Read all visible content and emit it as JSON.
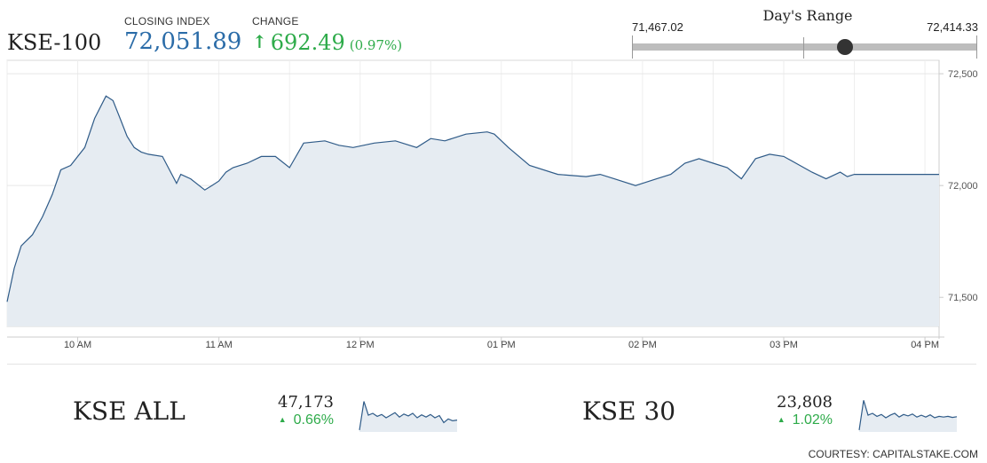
{
  "header": {
    "index_name": "KSE-100",
    "closing_label": "CLOSING INDEX",
    "closing_value": "72,051.89",
    "change_label": "CHANGE",
    "change_arrow": "↑",
    "change_value": "692.49",
    "change_percent": "(0.97%)"
  },
  "days_range": {
    "title": "Day's Range",
    "low": "71,467.02",
    "high": "72,414.33",
    "low_value": 71467.02,
    "high_value": 72414.33,
    "current_value": 72051.89
  },
  "colors": {
    "line": "#2f5b88",
    "fill": "#e6ecf2",
    "positive": "#2eab4a",
    "value_blue": "#2b6ca8"
  },
  "chart_data": {
    "type": "area",
    "ylim": [
      71370,
      72560
    ],
    "yticks": [
      72500,
      72000,
      71500
    ],
    "ytick_labels": [
      "72,500",
      "72,000",
      "71,500"
    ],
    "xlim": [
      9.5,
      16.1
    ],
    "xticks": [
      10,
      11,
      12,
      13,
      14,
      15,
      16
    ],
    "xtick_labels": [
      "10 AM",
      "11 AM",
      "12 PM",
      "01 PM",
      "02 PM",
      "03 PM",
      "04 PM"
    ],
    "grid": true,
    "series": [
      {
        "x": [
          9.5,
          9.55,
          9.6,
          9.68,
          9.75,
          9.82,
          9.88,
          9.95,
          10.05,
          10.12,
          10.2,
          10.25,
          10.3,
          10.35,
          10.4,
          10.45,
          10.5,
          10.6,
          10.7,
          10.73,
          10.8,
          10.9,
          10.95,
          11.0,
          11.05,
          11.1,
          11.2,
          11.3,
          11.4,
          11.5,
          11.6,
          11.75,
          11.85,
          11.95,
          12.1,
          12.25,
          12.4,
          12.5,
          12.6,
          12.75,
          12.9,
          12.95,
          13.05,
          13.2,
          13.4,
          13.6,
          13.7,
          13.8,
          13.95,
          14.0,
          14.1,
          14.2,
          14.3,
          14.4,
          14.5,
          14.6,
          14.7,
          14.8,
          14.9,
          15.0,
          15.2,
          15.3,
          15.4,
          15.45,
          15.5,
          16.1
        ],
        "values": [
          71480,
          71630,
          71730,
          71780,
          71860,
          71960,
          72070,
          72090,
          72170,
          72300,
          72400,
          72380,
          72300,
          72220,
          72170,
          72150,
          72140,
          72130,
          72010,
          72050,
          72030,
          71980,
          72000,
          72020,
          72060,
          72080,
          72100,
          72130,
          72130,
          72080,
          72190,
          72200,
          72180,
          72170,
          72190,
          72200,
          72170,
          72210,
          72200,
          72230,
          72240,
          72230,
          72170,
          72090,
          72050,
          72040,
          72050,
          72030,
          72000,
          72010,
          72030,
          72050,
          72100,
          72120,
          72100,
          72080,
          72030,
          72120,
          72140,
          72130,
          72060,
          72030,
          72060,
          72040,
          72050,
          72050
        ]
      }
    ]
  },
  "sub_indices": [
    {
      "name": "KSE ALL",
      "value": "47,173",
      "change": "0.66%",
      "trend": [
        0.05,
        0.82,
        0.45,
        0.5,
        0.42,
        0.47,
        0.38,
        0.45,
        0.52,
        0.4,
        0.48,
        0.43,
        0.5,
        0.38,
        0.46,
        0.4,
        0.47,
        0.38,
        0.44,
        0.25,
        0.35,
        0.3,
        0.32
      ]
    },
    {
      "name": "KSE 30",
      "value": "23,808",
      "change": "1.02%",
      "trend": [
        0.05,
        0.85,
        0.45,
        0.5,
        0.42,
        0.47,
        0.38,
        0.45,
        0.5,
        0.4,
        0.47,
        0.43,
        0.48,
        0.4,
        0.45,
        0.4,
        0.46,
        0.38,
        0.42,
        0.4,
        0.42,
        0.39,
        0.41
      ]
    }
  ],
  "courtesy": "COURTESY: CAPITALSTAKE.COM"
}
